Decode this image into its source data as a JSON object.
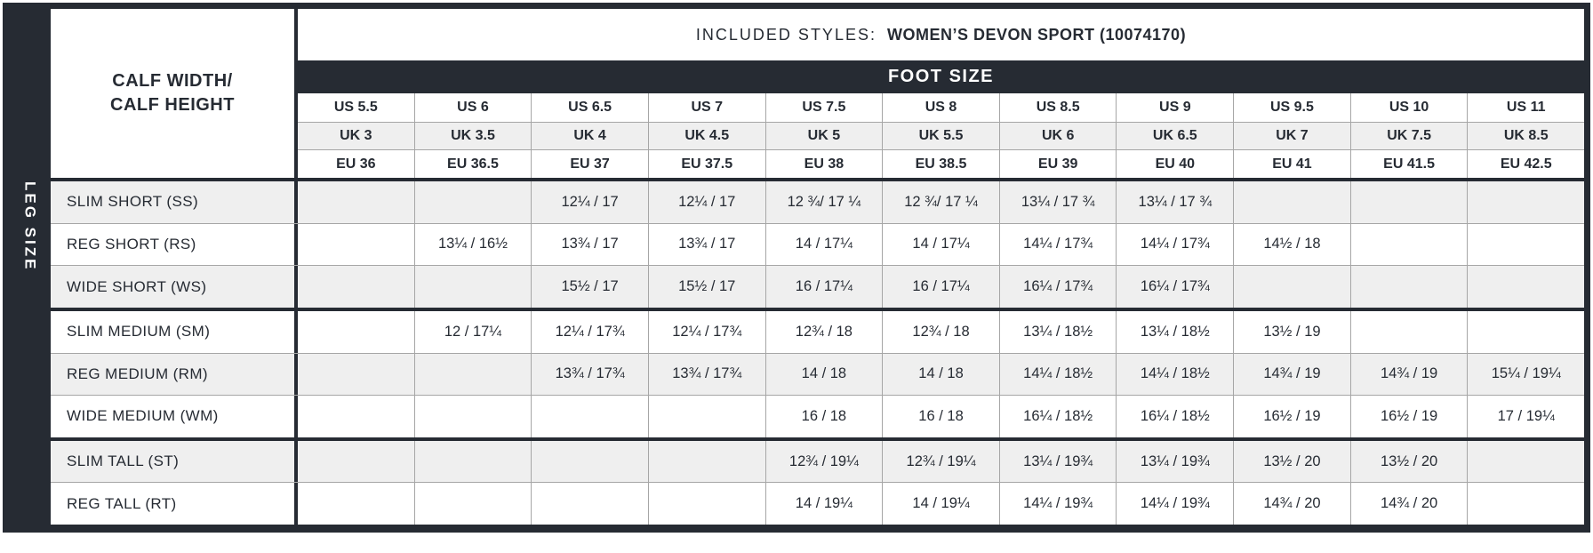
{
  "leg_axis_label": "LEG SIZE",
  "corner_header": "CALF WIDTH/\nCALF HEIGHT",
  "included": {
    "label": "INCLUDED STYLES:",
    "value": "WOMEN’S DEVON SPORT (10074170)"
  },
  "foot_size_label": "FOOT SIZE",
  "columns": [
    {
      "us": "US 5.5",
      "uk": "UK 3",
      "eu": "EU 36"
    },
    {
      "us": "US 6",
      "uk": "UK 3.5",
      "eu": "EU 36.5"
    },
    {
      "us": "US 6.5",
      "uk": "UK 4",
      "eu": "EU 37"
    },
    {
      "us": "US 7",
      "uk": "UK 4.5",
      "eu": "EU 37.5"
    },
    {
      "us": "US 7.5",
      "uk": "UK 5",
      "eu": "EU 38"
    },
    {
      "us": "US 8",
      "uk": "UK 5.5",
      "eu": "EU 38.5"
    },
    {
      "us": "US 8.5",
      "uk": "UK 6",
      "eu": "EU 39"
    },
    {
      "us": "US 9",
      "uk": "UK 6.5",
      "eu": "EU 40"
    },
    {
      "us": "US 9.5",
      "uk": "UK 7",
      "eu": "EU 41"
    },
    {
      "us": "US 10",
      "uk": "UK 7.5",
      "eu": "EU 41.5"
    },
    {
      "us": "US 11",
      "uk": "UK 8.5",
      "eu": "EU 42.5"
    }
  ],
  "rows": [
    {
      "label": "SLIM SHORT (SS)",
      "values": [
        "",
        "",
        "12¼ / 17",
        "12¼ / 17",
        "12 ¾/ 17 ¼",
        "12 ¾/ 17 ¼",
        "13¼ / 17 ¾",
        "13¼ / 17 ¾",
        "",
        "",
        ""
      ]
    },
    {
      "label": "REG SHORT (RS)",
      "values": [
        "",
        "13¼ / 16½",
        "13¾ / 17",
        "13¾ / 17",
        "14 / 17¼",
        "14 / 17¼",
        "14¼ / 17¾",
        "14¼ / 17¾",
        "14½ / 18",
        "",
        ""
      ]
    },
    {
      "label": "WIDE SHORT (WS)",
      "values": [
        "",
        "",
        "15½ / 17",
        "15½ / 17",
        "16 / 17¼",
        "16 / 17¼",
        "16¼ / 17¾",
        "16¼ / 17¾",
        "",
        "",
        ""
      ]
    },
    {
      "label": "SLIM MEDIUM (SM)",
      "values": [
        "",
        "12  / 17¼",
        "12¼ / 17¾",
        "12¼ / 17¾",
        "12¾ / 18",
        "12¾ / 18",
        "13¼  / 18½",
        "13¼  / 18½",
        "13½ / 19",
        "",
        ""
      ]
    },
    {
      "label": "REG MEDIUM (RM)",
      "values": [
        "",
        "",
        "13¾ / 17¾",
        "13¾ / 17¾",
        "14 / 18",
        "14 / 18",
        "14¼ / 18½",
        "14¼ / 18½",
        "14¾ / 19",
        "14¾ / 19",
        "15¼ / 19¼"
      ]
    },
    {
      "label": "WIDE MEDIUM (WM)",
      "values": [
        "",
        "",
        "",
        "",
        "16 / 18",
        "16 / 18",
        "16¼ / 18½",
        "16¼ / 18½",
        "16½ / 19",
        "16½ / 19",
        "17 / 19¼"
      ]
    },
    {
      "label": "SLIM TALL (ST)",
      "values": [
        "",
        "",
        "",
        "",
        "12¾ / 19¼",
        "12¾ / 19¼",
        "13¼ / 19¾",
        "13¼ / 19¾",
        "13½ / 20",
        "13½ / 20",
        ""
      ]
    },
    {
      "label": "REG TALL (RT)",
      "values": [
        "",
        "",
        "",
        "",
        "14 / 19¼",
        "14 / 19¼",
        "14¼ / 19¾",
        "14¼ / 19¾",
        "14¾ / 20",
        "14¾ / 20",
        ""
      ]
    }
  ],
  "colors": {
    "dark": "#262b33",
    "row_alt": "#efefef",
    "grid_line": "#a6a6a6",
    "header_text_on_dark": "#ffffff"
  }
}
